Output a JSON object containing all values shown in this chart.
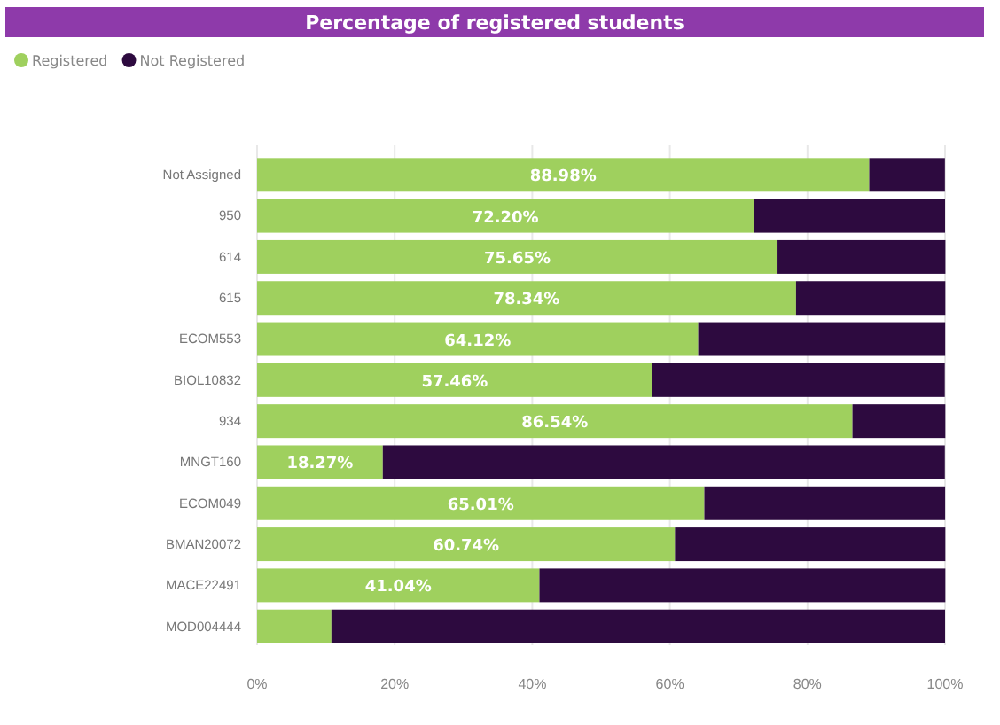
{
  "chart_data": {
    "type": "bar",
    "orientation": "horizontal",
    "stacked": true,
    "title": "Percentage of registered students",
    "categories": [
      "Not Assigned",
      "950",
      "614",
      "615",
      "ECOM553",
      "BIOL10832",
      "934",
      "MNGT160",
      "ECOM049",
      "BMAN20072",
      "MACE22491",
      "MOD004444"
    ],
    "series": [
      {
        "name": "Registered",
        "color": "#9fd05e",
        "values": [
          88.98,
          72.2,
          75.65,
          78.34,
          64.12,
          57.46,
          86.54,
          18.27,
          65.01,
          60.74,
          41.04,
          10.8
        ],
        "value_labels": [
          "88.98%",
          "72.20%",
          "75.65%",
          "78.34%",
          "64.12%",
          "57.46%",
          "86.54%",
          "18.27%",
          "65.01%",
          "60.74%",
          "41.04%",
          null
        ]
      },
      {
        "name": "Not Registered",
        "color": "#2d0a3f",
        "values": [
          11.0,
          27.8,
          24.4,
          21.7,
          35.9,
          42.5,
          13.5,
          81.7,
          35.0,
          39.3,
          59.0,
          89.2
        ]
      }
    ],
    "xlim": [
      0,
      100
    ],
    "xticks": [
      {
        "value": 0,
        "label": "0%"
      },
      {
        "value": 20,
        "label": "20%"
      },
      {
        "value": 40,
        "label": "40%"
      },
      {
        "value": 60,
        "label": "60%"
      },
      {
        "value": 80,
        "label": "80%"
      },
      {
        "value": 100,
        "label": "100%"
      }
    ],
    "grid": "x",
    "legend": "top left"
  }
}
